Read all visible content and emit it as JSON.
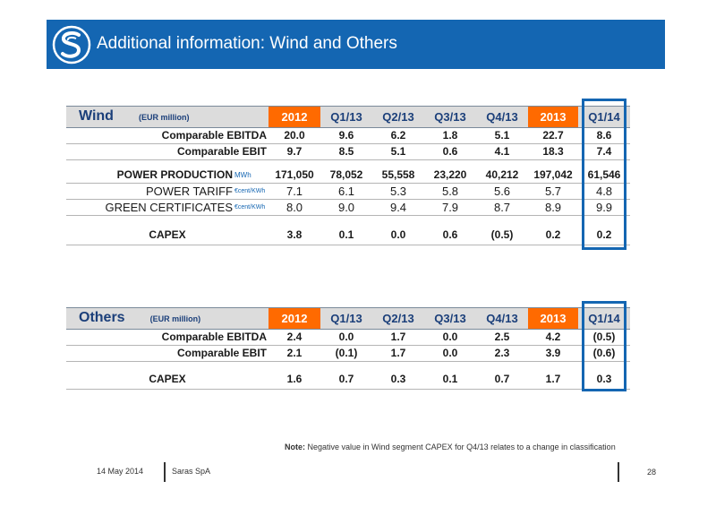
{
  "title": "Additional information: Wind and Others",
  "colors": {
    "brand_blue": "#1466b2",
    "year_orange": "#ff6a00",
    "header_gray": "#dcdcdc"
  },
  "columns": [
    "2012",
    "Q1/13",
    "Q2/13",
    "Q3/13",
    "Q4/13",
    "2013",
    "Q1/14"
  ],
  "wind": {
    "section": "Wind",
    "unit": "(EUR million)",
    "rows": [
      {
        "label": "Comparable EBITDA",
        "values": [
          "20.0",
          "9.6",
          "6.2",
          "1.8",
          "5.1",
          "22.7",
          "8.6"
        ]
      },
      {
        "label": "Comparable EBIT",
        "values": [
          "9.7",
          "8.5",
          "5.1",
          "0.6",
          "4.1",
          "18.3",
          "7.4"
        ]
      }
    ],
    "production": {
      "label": "POWER PRODUCTION",
      "unit": "MWh",
      "values": [
        "171,050",
        "78,052",
        "55,558",
        "23,220",
        "40,212",
        "197,042",
        "61,546"
      ]
    },
    "tariff": {
      "label": "POWER TARIFF",
      "unit": "€cent/KWh",
      "values": [
        "7.1",
        "6.1",
        "5.3",
        "5.8",
        "5.6",
        "5.7",
        "4.8"
      ]
    },
    "green": {
      "label": "GREEN CERTIFICATES",
      "unit": "€cent/KWh",
      "values": [
        "8.0",
        "9.0",
        "9.4",
        "7.9",
        "8.7",
        "8.9",
        "9.9"
      ]
    },
    "capex": {
      "label": "CAPEX",
      "values": [
        "3.8",
        "0.1",
        "0.0",
        "0.6",
        "(0.5)",
        "0.2",
        "0.2"
      ]
    }
  },
  "others": {
    "section": "Others",
    "unit": "(EUR million)",
    "rows": [
      {
        "label": "Comparable EBITDA",
        "values": [
          "2.4",
          "0.0",
          "1.7",
          "0.0",
          "2.5",
          "4.2",
          "(0.5)"
        ]
      },
      {
        "label": "Comparable EBIT",
        "values": [
          "2.1",
          "(0.1)",
          "1.7",
          "0.0",
          "2.3",
          "3.9",
          "(0.6)"
        ]
      }
    ],
    "capex": {
      "label": "CAPEX",
      "values": [
        "1.6",
        "0.7",
        "0.3",
        "0.1",
        "0.7",
        "1.7",
        "0.3"
      ]
    }
  },
  "note": {
    "prefix": "Note:",
    "text": "Negative value in Wind segment CAPEX for Q4/13 relates to a change in classification"
  },
  "footer": {
    "date": "14 May 2014",
    "company": "Saras SpA",
    "page": "28"
  }
}
